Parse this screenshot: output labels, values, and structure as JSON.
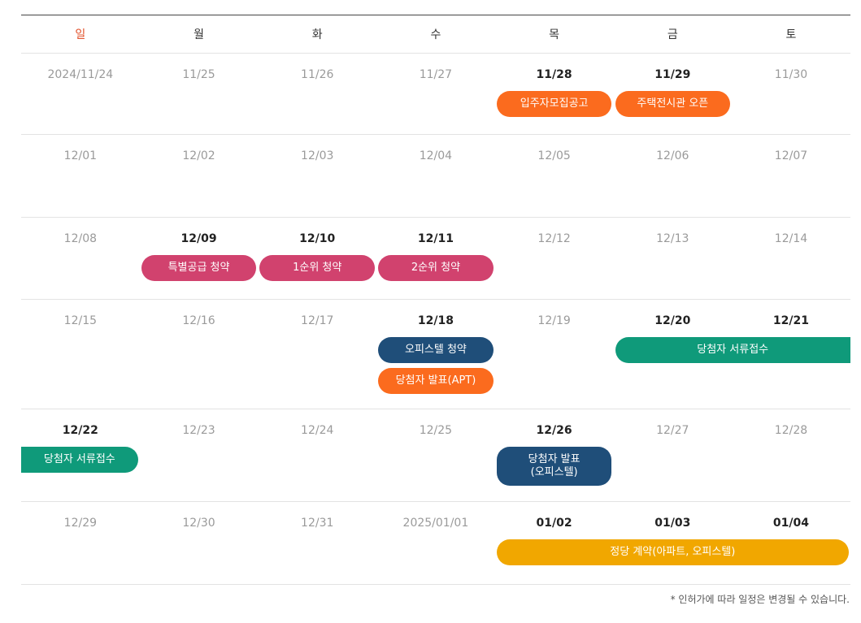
{
  "days_of_week": [
    "일",
    "월",
    "화",
    "수",
    "목",
    "금",
    "토"
  ],
  "weeks": [
    {
      "dates": [
        "2024/11/24",
        "11/25",
        "11/26",
        "11/27",
        "11/28",
        "11/29",
        "11/30"
      ],
      "active": [
        false,
        false,
        false,
        false,
        true,
        true,
        false
      ],
      "events": [
        {
          "label": "입주자모집공고",
          "color": "orange",
          "start": 4,
          "span": 1
        },
        {
          "label": "주택전시관 오픈",
          "color": "orange",
          "start": 5,
          "span": 1
        }
      ]
    },
    {
      "dates": [
        "12/01",
        "12/02",
        "12/03",
        "12/04",
        "12/05",
        "12/06",
        "12/07"
      ],
      "active": [
        false,
        false,
        false,
        false,
        false,
        false,
        false
      ],
      "events": []
    },
    {
      "dates": [
        "12/08",
        "12/09",
        "12/10",
        "12/11",
        "12/12",
        "12/13",
        "12/14"
      ],
      "active": [
        false,
        true,
        true,
        true,
        false,
        false,
        false
      ],
      "events": [
        {
          "label": "특별공급 청약",
          "color": "pink",
          "start": 1,
          "span": 1
        },
        {
          "label": "1순위 청약",
          "color": "pink",
          "start": 2,
          "span": 1
        },
        {
          "label": "2순위 청약",
          "color": "pink",
          "start": 3,
          "span": 1
        }
      ]
    },
    {
      "dates": [
        "12/15",
        "12/16",
        "12/17",
        "12/18",
        "12/19",
        "12/20",
        "12/21"
      ],
      "active": [
        false,
        false,
        false,
        true,
        false,
        true,
        true
      ],
      "events": [
        {
          "label": "오피스텔 청약",
          "color": "navy",
          "start": 3,
          "span": 1
        },
        {
          "label": "당첨자 발표(APT)",
          "color": "orange",
          "start": 3,
          "span": 1,
          "line": 2
        },
        {
          "label": "당첨자 서류접수",
          "color": "teal",
          "start": 5,
          "span": 2,
          "continues": true
        }
      ]
    },
    {
      "dates": [
        "12/22",
        "12/23",
        "12/24",
        "12/25",
        "12/26",
        "12/27",
        "12/28"
      ],
      "active": [
        true,
        false,
        false,
        false,
        true,
        false,
        false
      ],
      "events": [
        {
          "label": "당첨자 서류접수",
          "color": "teal",
          "start": 0,
          "span": 1,
          "continued": true
        },
        {
          "label": "당첨자 발표\n(오피스텔)",
          "color": "navy",
          "start": 4,
          "span": 1,
          "tall": true
        }
      ]
    },
    {
      "dates": [
        "12/29",
        "12/30",
        "12/31",
        "2025/01/01",
        "01/02",
        "01/03",
        "01/04"
      ],
      "active": [
        false,
        false,
        false,
        false,
        true,
        true,
        true
      ],
      "events": [
        {
          "label": "정당 계약(아파트, 오피스텔)",
          "color": "yellow",
          "start": 4,
          "span": 3
        }
      ]
    }
  ],
  "note": "* 인허가에 따라 일정은 변경될 수 있습니다."
}
